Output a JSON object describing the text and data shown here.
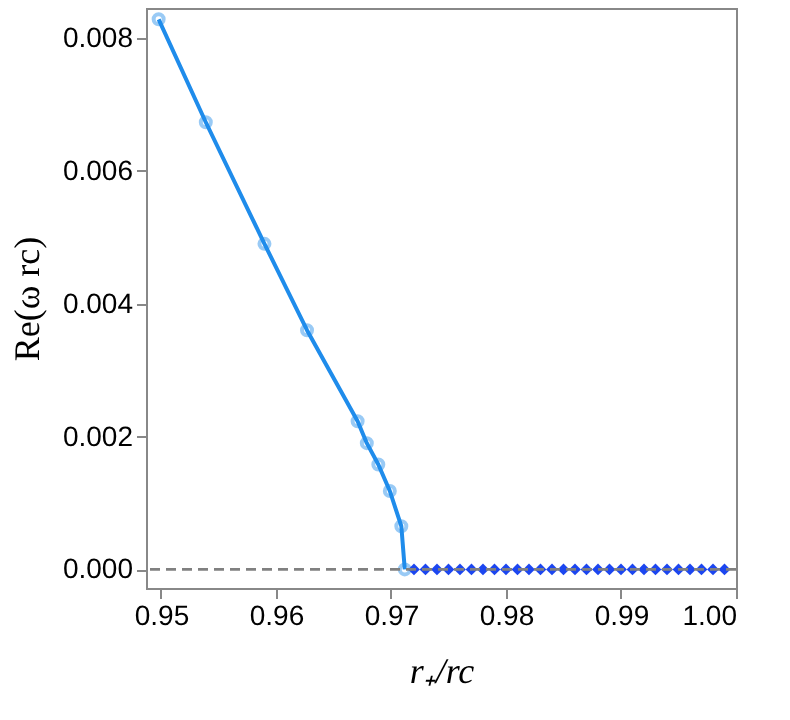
{
  "chart_data": {
    "type": "line",
    "xlabel": "r₊/rc",
    "ylabel": "Re(ω rc)",
    "xlim": [
      0.9487,
      1.0
    ],
    "ylim": [
      -0.00028,
      0.00845
    ],
    "xticks": [
      {
        "value": 0.95,
        "label": "0.95"
      },
      {
        "value": 0.96,
        "label": "0.96"
      },
      {
        "value": 0.97,
        "label": "0.97"
      },
      {
        "value": 0.98,
        "label": "0.98"
      },
      {
        "value": 0.99,
        "label": "0.99"
      },
      {
        "value": 1.0,
        "label": "1.00"
      }
    ],
    "yticks": [
      {
        "value": 0,
        "label": "0.000"
      },
      {
        "value": 0.002,
        "label": "0.002"
      },
      {
        "value": 0.004,
        "label": "0.004"
      },
      {
        "value": 0.006,
        "label": "0.006"
      },
      {
        "value": 0.008,
        "label": "0.008"
      }
    ],
    "grid": false,
    "series": [
      {
        "type": "line",
        "color": "#1f8ceb",
        "marker": "circle",
        "line_style": "solid",
        "x": [
          0.9498,
          0.9539,
          0.959,
          0.9627,
          0.9671,
          0.9679,
          0.9689,
          0.9699,
          0.9709,
          0.9712
        ],
        "values": [
          0.00828,
          0.00673,
          0.0049,
          0.0036,
          0.00223,
          0.0019,
          0.00158,
          0.00118,
          0.00065,
          0
        ]
      },
      {
        "type": "scatter",
        "color": "#1c46f0",
        "marker": "diamond",
        "x": [
          0.972,
          0.973,
          0.974,
          0.975,
          0.976,
          0.977,
          0.978,
          0.979,
          0.98,
          0.981,
          0.982,
          0.983,
          0.984,
          0.985,
          0.986,
          0.987,
          0.988,
          0.989,
          0.99,
          0.991,
          0.992,
          0.993,
          0.994,
          0.995,
          0.996,
          0.997,
          0.998,
          0.999
        ],
        "values": [
          0,
          0,
          0,
          0,
          0,
          0,
          0,
          0,
          0,
          0,
          0,
          0,
          0,
          0,
          0,
          0,
          0,
          0,
          0,
          0,
          0,
          0,
          0,
          0,
          0,
          0,
          0,
          0
        ]
      }
    ],
    "ref_lines": [
      {
        "axis": "y",
        "value": 0,
        "color": "#808080",
        "line_style": "dashed"
      }
    ]
  }
}
